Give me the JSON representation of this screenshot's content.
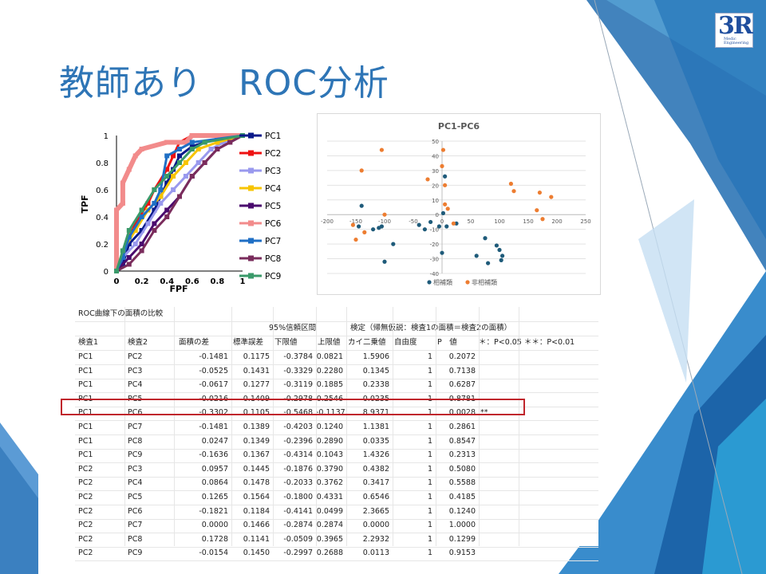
{
  "slide": {
    "title": "教師あり　ROC分析",
    "logo": {
      "mark": "3R",
      "line1": "Medic",
      "line2": "Engineering"
    }
  },
  "roc_chart": {
    "xlabel": "FPF",
    "ylabel": "TPF",
    "x_ticks": [
      "0",
      "0.2",
      "0.4",
      "0.6",
      "0.8",
      "1"
    ],
    "y_ticks": [
      "0",
      "0.2",
      "0.4",
      "0.6",
      "0.8",
      "1"
    ],
    "legend": [
      {
        "name": "PC1",
        "color": "#0a1a8a"
      },
      {
        "name": "PC2",
        "color": "#ee1111"
      },
      {
        "name": "PC3",
        "color": "#9999ee"
      },
      {
        "name": "PC4",
        "color": "#f7c400"
      },
      {
        "name": "PC5",
        "color": "#4a0a6e"
      },
      {
        "name": "PC6",
        "color": "#f28b8b"
      },
      {
        "name": "PC7",
        "color": "#1f6fc5"
      },
      {
        "name": "PC8",
        "color": "#7a2c5c"
      },
      {
        "name": "PC9",
        "color": "#3a9a6a"
      }
    ]
  },
  "chart_data": [
    {
      "type": "line",
      "xlabel": "FPF",
      "ylabel": "TPF",
      "xlim": [
        0,
        1
      ],
      "ylim": [
        0,
        1
      ],
      "series": [
        {
          "name": "PC1",
          "points": [
            [
              0,
              0
            ],
            [
              0.05,
              0.05
            ],
            [
              0.1,
              0.2
            ],
            [
              0.2,
              0.3
            ],
            [
              0.3,
              0.45
            ],
            [
              0.35,
              0.55
            ],
            [
              0.4,
              0.65
            ],
            [
              0.45,
              0.75
            ],
            [
              0.5,
              0.85
            ],
            [
              0.6,
              0.92
            ],
            [
              0.7,
              0.95
            ],
            [
              0.8,
              0.97
            ],
            [
              1,
              1
            ]
          ]
        },
        {
          "name": "PC2",
          "points": [
            [
              0,
              0
            ],
            [
              0.05,
              0.1
            ],
            [
              0.1,
              0.25
            ],
            [
              0.15,
              0.35
            ],
            [
              0.25,
              0.5
            ],
            [
              0.3,
              0.6
            ],
            [
              0.4,
              0.75
            ],
            [
              0.45,
              0.85
            ],
            [
              0.5,
              0.95
            ],
            [
              0.6,
              1
            ],
            [
              1,
              1
            ]
          ]
        },
        {
          "name": "PC3",
          "points": [
            [
              0,
              0
            ],
            [
              0.05,
              0.1
            ],
            [
              0.15,
              0.2
            ],
            [
              0.25,
              0.35
            ],
            [
              0.35,
              0.5
            ],
            [
              0.45,
              0.6
            ],
            [
              0.55,
              0.7
            ],
            [
              0.65,
              0.8
            ],
            [
              0.75,
              0.9
            ],
            [
              0.85,
              0.95
            ],
            [
              1,
              1
            ]
          ]
        },
        {
          "name": "PC4",
          "points": [
            [
              0,
              0
            ],
            [
              0.05,
              0.15
            ],
            [
              0.15,
              0.3
            ],
            [
              0.25,
              0.45
            ],
            [
              0.35,
              0.55
            ],
            [
              0.45,
              0.7
            ],
            [
              0.55,
              0.8
            ],
            [
              0.65,
              0.9
            ],
            [
              0.8,
              0.95
            ],
            [
              1,
              1
            ]
          ]
        },
        {
          "name": "PC5",
          "points": [
            [
              0,
              0
            ],
            [
              0.1,
              0.1
            ],
            [
              0.2,
              0.2
            ],
            [
              0.3,
              0.35
            ],
            [
              0.4,
              0.45
            ],
            [
              0.5,
              0.55
            ],
            [
              0.6,
              0.7
            ],
            [
              0.7,
              0.8
            ],
            [
              0.8,
              0.9
            ],
            [
              0.9,
              0.95
            ],
            [
              1,
              1
            ]
          ]
        },
        {
          "name": "PC6",
          "points": [
            [
              0,
              0
            ],
            [
              0,
              0.45
            ],
            [
              0.05,
              0.5
            ],
            [
              0.05,
              0.65
            ],
            [
              0.1,
              0.75
            ],
            [
              0.15,
              0.85
            ],
            [
              0.2,
              0.9
            ],
            [
              0.4,
              0.95
            ],
            [
              0.55,
              0.95
            ],
            [
              0.6,
              1
            ],
            [
              1,
              1
            ]
          ]
        },
        {
          "name": "PC7",
          "points": [
            [
              0,
              0
            ],
            [
              0.05,
              0.1
            ],
            [
              0.1,
              0.25
            ],
            [
              0.2,
              0.4
            ],
            [
              0.3,
              0.5
            ],
            [
              0.35,
              0.6
            ],
            [
              0.4,
              0.85
            ],
            [
              0.5,
              0.9
            ],
            [
              0.6,
              0.95
            ],
            [
              1,
              1
            ]
          ]
        },
        {
          "name": "PC8",
          "points": [
            [
              0,
              0
            ],
            [
              0.1,
              0.05
            ],
            [
              0.2,
              0.15
            ],
            [
              0.3,
              0.3
            ],
            [
              0.4,
              0.4
            ],
            [
              0.5,
              0.55
            ],
            [
              0.6,
              0.7
            ],
            [
              0.7,
              0.8
            ],
            [
              0.8,
              0.9
            ],
            [
              0.9,
              0.95
            ],
            [
              1,
              1
            ]
          ]
        },
        {
          "name": "PC9",
          "points": [
            [
              0,
              0
            ],
            [
              0.05,
              0.15
            ],
            [
              0.1,
              0.3
            ],
            [
              0.2,
              0.45
            ],
            [
              0.3,
              0.6
            ],
            [
              0.4,
              0.7
            ],
            [
              0.5,
              0.8
            ],
            [
              0.6,
              0.9
            ],
            [
              0.7,
              0.95
            ],
            [
              1,
              1
            ]
          ]
        }
      ]
    },
    {
      "type": "scatter",
      "title": "PC1-PC6",
      "xlim": [
        -200,
        250
      ],
      "ylim": [
        -40,
        50
      ],
      "x_ticks": [
        -200,
        -150,
        -100,
        -50,
        0,
        50,
        100,
        150,
        200,
        250
      ],
      "y_ticks": [
        -40,
        -30,
        -20,
        -10,
        0,
        10,
        20,
        30,
        40,
        50
      ],
      "legend_position": "bottom",
      "series": [
        {
          "name": "相補類",
          "color": "#1f5b7a",
          "points": [
            [
              -140,
              6
            ],
            [
              -145,
              -8
            ],
            [
              -120,
              -10
            ],
            [
              -110,
              -9
            ],
            [
              -105,
              -8
            ],
            [
              -85,
              -20
            ],
            [
              -100,
              -32
            ],
            [
              -40,
              -7
            ],
            [
              -30,
              -10
            ],
            [
              -20,
              -5
            ],
            [
              -5,
              -8
            ],
            [
              0,
              -26
            ],
            [
              2,
              1
            ],
            [
              8,
              -8
            ],
            [
              5,
              26
            ],
            [
              25,
              -6
            ],
            [
              60,
              -28
            ],
            [
              75,
              -16
            ],
            [
              80,
              -33
            ],
            [
              95,
              -21
            ],
            [
              100,
              -24
            ],
            [
              105,
              -28
            ],
            [
              103,
              -31
            ]
          ]
        },
        {
          "name": "非相補類",
          "color": "#ed7d31",
          "points": [
            [
              -150,
              -17
            ],
            [
              -155,
              -7
            ],
            [
              -140,
              30
            ],
            [
              -135,
              -12
            ],
            [
              -105,
              44
            ],
            [
              -100,
              0
            ],
            [
              -25,
              24
            ],
            [
              2,
              44
            ],
            [
              0,
              33
            ],
            [
              5,
              20
            ],
            [
              5,
              7
            ],
            [
              10,
              4
            ],
            [
              20,
              -6
            ],
            [
              120,
              21
            ],
            [
              125,
              16
            ],
            [
              165,
              3
            ],
            [
              170,
              15
            ],
            [
              175,
              -3
            ],
            [
              190,
              12
            ]
          ]
        }
      ]
    }
  ],
  "table": {
    "caption": "ROC曲線下の面積の比較",
    "ci_header": "95%信頼区間",
    "test_header": "検定（帰無仮説：検査1の面積＝検査2の面積）",
    "sig_note": "＊：P<0.05 ＊＊：P<0.01",
    "headers": [
      "検査1",
      "検査2",
      "面積の差",
      "標準誤差",
      "下限値",
      "上限値",
      "カイ二乗値",
      "自由度",
      "P　値"
    ],
    "rows": [
      [
        "PC1",
        "PC2",
        "-0.1481",
        "0.1175",
        "-0.3784",
        "0.0821",
        "1.5906",
        "1",
        "0.2072",
        ""
      ],
      [
        "PC1",
        "PC3",
        "-0.0525",
        "0.1431",
        "-0.3329",
        "0.2280",
        "0.1345",
        "1",
        "0.7138",
        ""
      ],
      [
        "PC1",
        "PC4",
        "-0.0617",
        "0.1277",
        "-0.3119",
        "0.1885",
        "0.2338",
        "1",
        "0.6287",
        ""
      ],
      [
        "PC1",
        "PC5",
        "-0.0216",
        "0.1409",
        "-0.2978",
        "0.2546",
        "0.0235",
        "1",
        "0.8781",
        ""
      ],
      [
        "PC1",
        "PC6",
        "-0.3302",
        "0.1105",
        "-0.5468",
        "-0.1137",
        "8.9371",
        "1",
        "0.0028",
        "**"
      ],
      [
        "PC1",
        "PC7",
        "-0.1481",
        "0.1389",
        "-0.4203",
        "0.1240",
        "1.1381",
        "1",
        "0.2861",
        ""
      ],
      [
        "PC1",
        "PC8",
        "0.0247",
        "0.1349",
        "-0.2396",
        "0.2890",
        "0.0335",
        "1",
        "0.8547",
        ""
      ],
      [
        "PC1",
        "PC9",
        "-0.1636",
        "0.1367",
        "-0.4314",
        "0.1043",
        "1.4326",
        "1",
        "0.2313",
        ""
      ],
      [
        "PC2",
        "PC3",
        "0.0957",
        "0.1445",
        "-0.1876",
        "0.3790",
        "0.4382",
        "1",
        "0.5080",
        ""
      ],
      [
        "PC2",
        "PC4",
        "0.0864",
        "0.1478",
        "-0.2033",
        "0.3762",
        "0.3417",
        "1",
        "0.5588",
        ""
      ],
      [
        "PC2",
        "PC5",
        "0.1265",
        "0.1564",
        "-0.1800",
        "0.4331",
        "0.6546",
        "1",
        "0.4185",
        ""
      ],
      [
        "PC2",
        "PC6",
        "-0.1821",
        "0.1184",
        "-0.4141",
        "0.0499",
        "2.3665",
        "1",
        "0.1240",
        ""
      ],
      [
        "PC2",
        "PC7",
        "0.0000",
        "0.1466",
        "-0.2874",
        "0.2874",
        "0.0000",
        "1",
        "1.0000",
        ""
      ],
      [
        "PC2",
        "PC8",
        "0.1728",
        "0.1141",
        "-0.0509",
        "0.3965",
        "2.2932",
        "1",
        "0.1299",
        ""
      ],
      [
        "PC2",
        "PC9",
        "-0.0154",
        "0.1450",
        "-0.2997",
        "0.2688",
        "0.0113",
        "1",
        "0.9153",
        ""
      ]
    ]
  }
}
